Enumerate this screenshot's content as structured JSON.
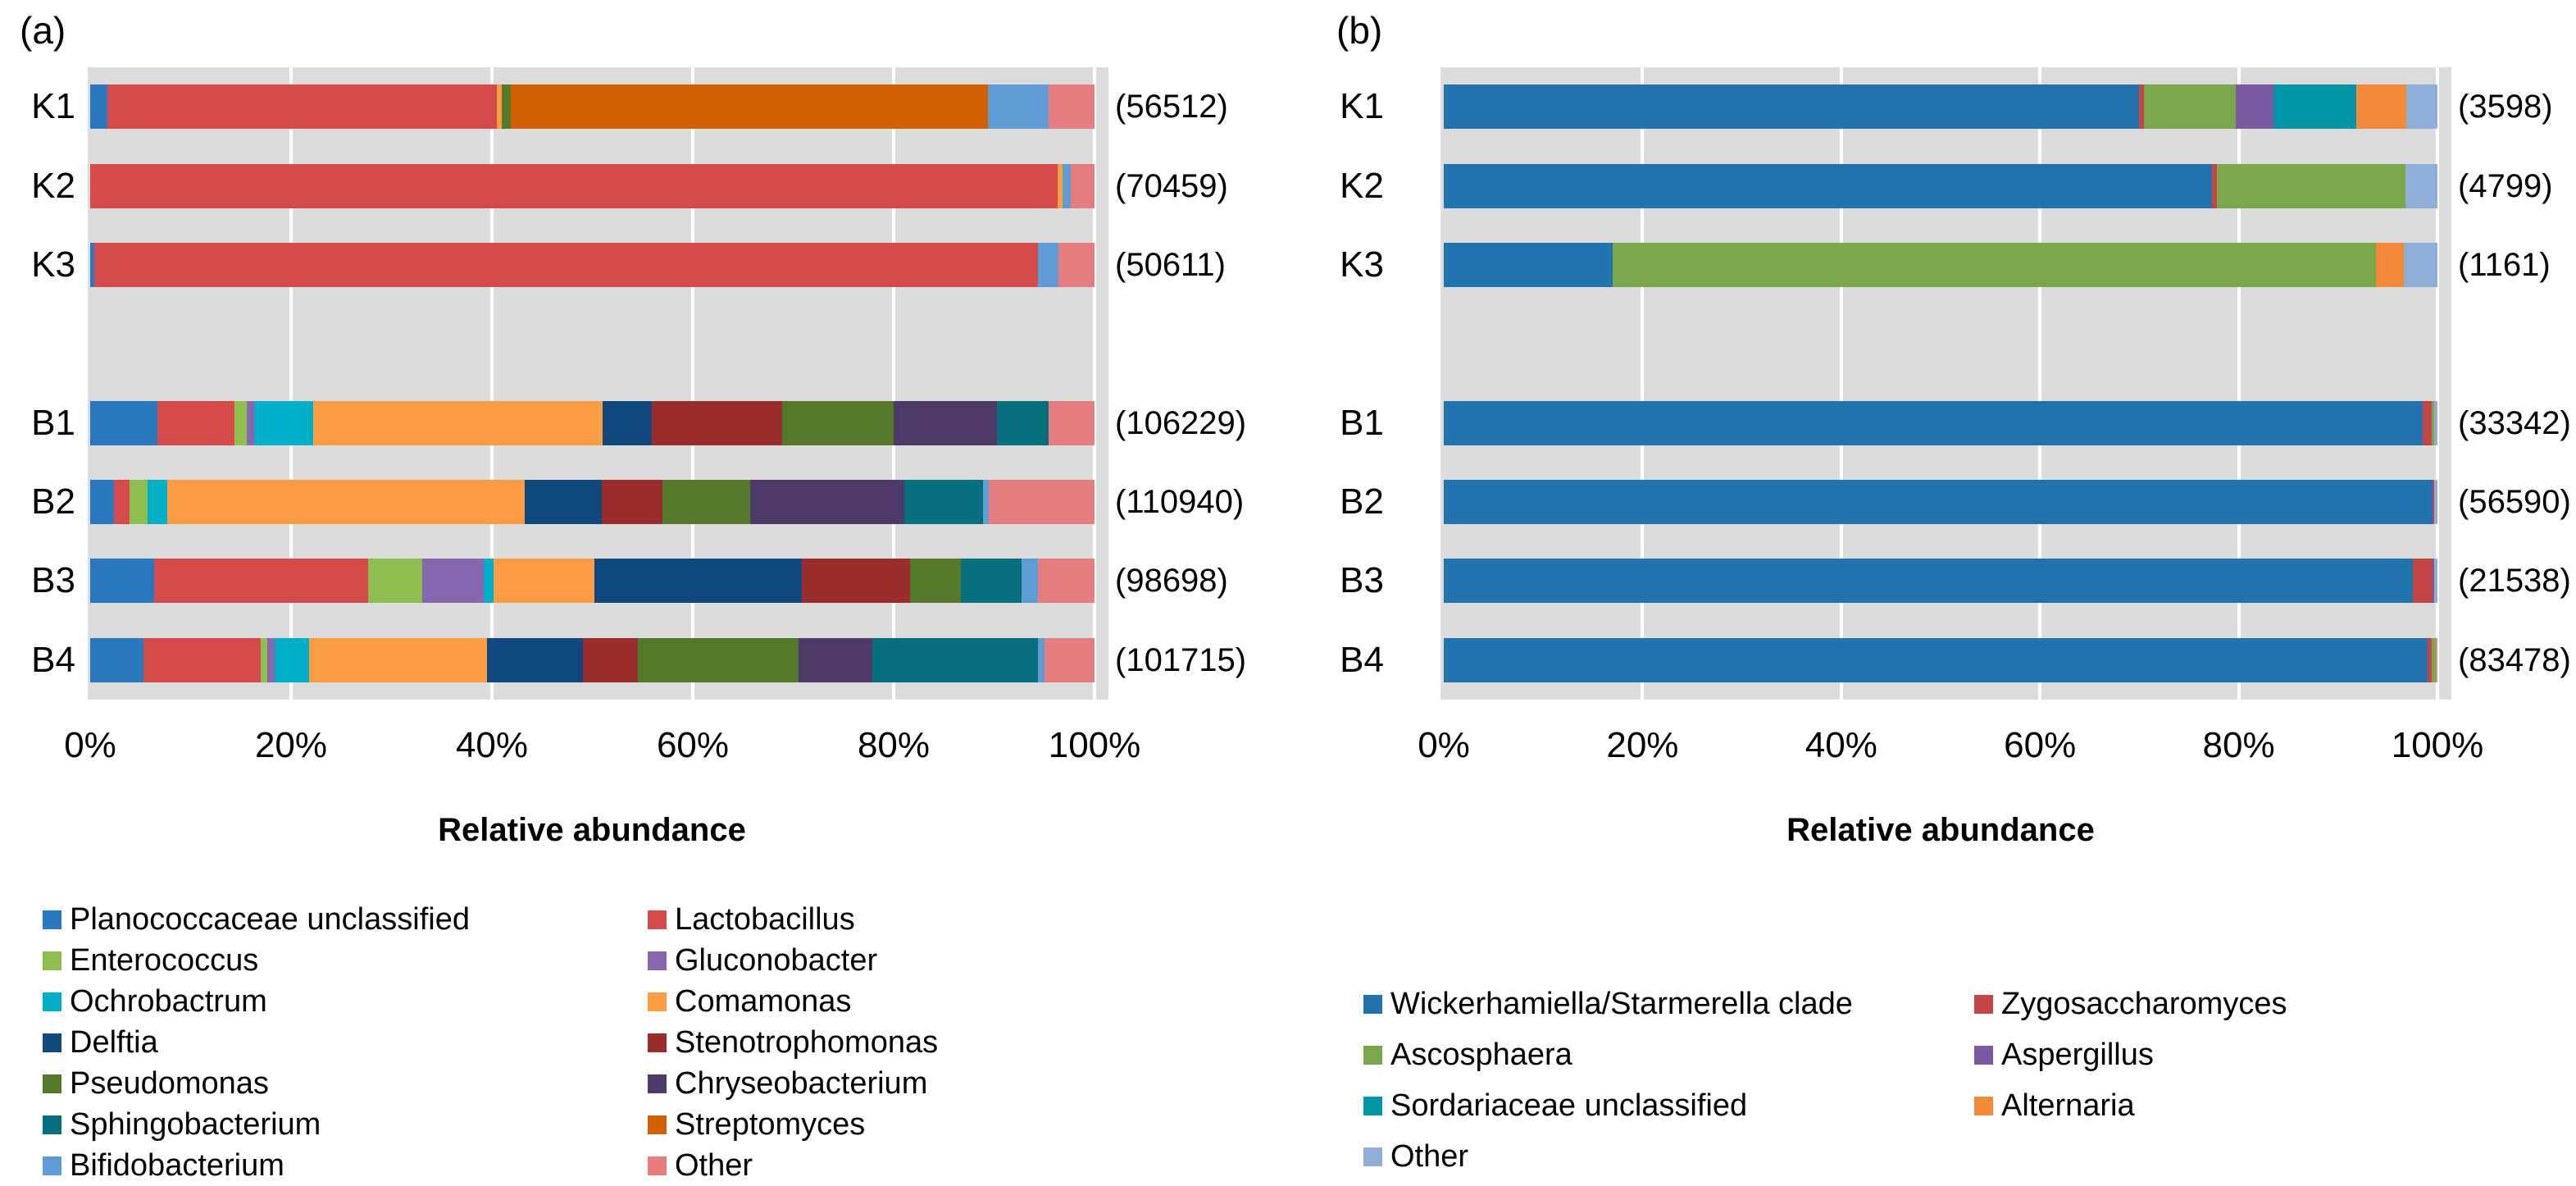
{
  "chart_data": [
    {
      "panel": "a",
      "panel_label": "(a)",
      "type": "bar",
      "orientation": "horizontal",
      "stacked": true,
      "unit": "relative abundance (%)",
      "xlabel": "Relative abundance",
      "x_ticks": [
        "0%",
        "20%",
        "40%",
        "60%",
        "80%",
        "100%"
      ],
      "xlim": [
        0,
        100
      ],
      "grid": true,
      "plot_background": "#DBDBDB",
      "gridline_color": "#FFFFFF",
      "categories": [
        "K1",
        "K2",
        "K3",
        "B1",
        "B2",
        "B3",
        "B4"
      ],
      "gap_after_index": 2,
      "counts": [
        56512,
        70459,
        50611,
        106229,
        110940,
        98698,
        101715
      ],
      "count_labels": [
        "(56512)",
        "(70459)",
        "(50611)",
        "(106229)",
        "(110940)",
        "(98698)",
        "(101715)"
      ],
      "series": [
        {
          "name": "Planococcaceae unclassified",
          "color": "#2878BE",
          "values": [
            1.7,
            0,
            0.4,
            6.7,
            2.4,
            6.4,
            5.3
          ]
        },
        {
          "name": "Lactobacillus",
          "color": "#D54B4B",
          "values": [
            38.8,
            96.3,
            94.0,
            7.7,
            1.5,
            21.3,
            11.7
          ]
        },
        {
          "name": "Enterococcus",
          "color": "#8EBE50",
          "values": [
            0,
            0,
            0,
            1.2,
            1.8,
            5.4,
            0.6
          ]
        },
        {
          "name": "Gluconobacter",
          "color": "#8767AE",
          "values": [
            0,
            0,
            0,
            0.7,
            0,
            6.1,
            0.8
          ]
        },
        {
          "name": "Ochrobactrum",
          "color": "#00AEC8",
          "values": [
            0,
            0,
            0,
            5.9,
            2.0,
            1.0,
            3.4
          ]
        },
        {
          "name": "Comamonas",
          "color": "#FA9D45",
          "values": [
            0.5,
            0.5,
            0,
            28.8,
            35.6,
            10.0,
            17.7
          ]
        },
        {
          "name": "Delftia",
          "color": "#11497E",
          "values": [
            0,
            0,
            0,
            4.9,
            7.6,
            20.7,
            9.6
          ]
        },
        {
          "name": "Stenotrophomonas",
          "color": "#992D2D",
          "values": [
            0,
            0,
            0,
            13.0,
            6.1,
            10.7,
            5.4
          ]
        },
        {
          "name": "Pseudomonas",
          "color": "#55792B",
          "values": [
            0.9,
            0,
            0,
            11.1,
            8.7,
            5.1,
            16.0
          ]
        },
        {
          "name": "Chryseobacterium",
          "color": "#4D3A69",
          "values": [
            0,
            0,
            0,
            10.3,
            15.4,
            0,
            7.4
          ]
        },
        {
          "name": "Sphingobacterium",
          "color": "#076E7E",
          "values": [
            0,
            0,
            0,
            5.1,
            7.8,
            6.0,
            16.5
          ]
        },
        {
          "name": "Streptomyces",
          "color": "#D26000",
          "values": [
            47.5,
            0,
            0,
            0,
            0,
            0,
            0
          ]
        },
        {
          "name": "Bifidobacterium",
          "color": "#5E9CD3",
          "values": [
            6.0,
            0.8,
            2.0,
            0,
            0.6,
            1.7,
            0.6
          ]
        },
        {
          "name": "Other",
          "color": "#E67E80",
          "values": [
            4.6,
            2.4,
            3.6,
            4.6,
            10.5,
            5.6,
            5.0
          ]
        }
      ],
      "legend_position": "bottom-left, two columns"
    },
    {
      "panel": "b",
      "panel_label": "(b)",
      "type": "bar",
      "orientation": "horizontal",
      "stacked": true,
      "unit": "relative abundance (%)",
      "xlabel": "Relative abundance",
      "x_ticks": [
        "0%",
        "20%",
        "40%",
        "60%",
        "80%",
        "100%"
      ],
      "xlim": [
        0,
        100
      ],
      "grid": true,
      "plot_background": "#DBDBDB",
      "gridline_color": "#FFFFFF",
      "categories": [
        "K1",
        "K2",
        "K3",
        "B1",
        "B2",
        "B3",
        "B4"
      ],
      "gap_after_index": 2,
      "counts": [
        3598,
        4799,
        1161,
        33342,
        56590,
        21538,
        83478
      ],
      "count_labels": [
        "(3598)",
        "(4799)",
        "(1161)",
        "(33342)",
        "(56590)",
        "(21538)",
        "(83478)"
      ],
      "series": [
        {
          "name": "Wickerhamiella/Starmerella clade",
          "color": "#2073AC",
          "values": [
            70.0,
            77.3,
            17.0,
            98.5,
            99.5,
            97.5,
            99.0
          ]
        },
        {
          "name": "Zygosaccharomyces",
          "color": "#C34545",
          "values": [
            0.5,
            0.5,
            0,
            0.9,
            0.2,
            2.0,
            0.4
          ]
        },
        {
          "name": "Ascosphaera",
          "color": "#7AA74D",
          "values": [
            9.2,
            19.0,
            76.8,
            0.3,
            0,
            0,
            0.4
          ]
        },
        {
          "name": "Aspergillus",
          "color": "#7A5BA2",
          "values": [
            3.8,
            0,
            0,
            0,
            0,
            0.2,
            0
          ]
        },
        {
          "name": "Sordariaceae unclassified",
          "color": "#0295A8",
          "values": [
            8.3,
            0,
            0,
            0,
            0,
            0,
            0
          ]
        },
        {
          "name": "Alternaria",
          "color": "#F38A39",
          "values": [
            5.1,
            0,
            2.8,
            0,
            0,
            0,
            0.1
          ]
        },
        {
          "name": "Other",
          "color": "#90AFD8",
          "values": [
            3.1,
            3.2,
            3.4,
            0.3,
            0.3,
            0.3,
            0.1
          ]
        }
      ],
      "legend_position": "bottom-center-right, two columns"
    }
  ]
}
